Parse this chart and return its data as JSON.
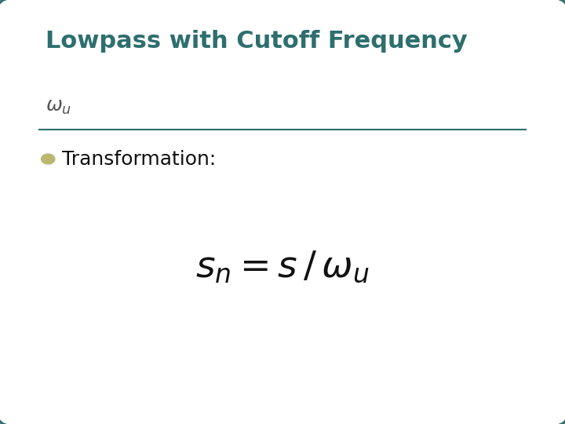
{
  "title": "Lowpass with Cutoff Frequency",
  "title_color": "#2E6E6E",
  "title_fontsize": 22,
  "subtitle_math": "$\\omega_u$",
  "subtitle_color": "#555555",
  "subtitle_fontsize": 18,
  "bullet_color": "#B8B870",
  "bullet_text": "Transformation:",
  "bullet_fontsize": 18,
  "formula": "$s_n = s\\,/\\,\\omega_u$",
  "formula_fontsize": 34,
  "formula_color": "#111111",
  "background_color": "#FFFFFF",
  "border_color": "#2E6E6E",
  "border_linewidth": 2.5,
  "line_color": "#2E6E6E",
  "line_linewidth": 1.5,
  "fig_width": 7.2,
  "fig_height": 5.4,
  "dpi": 100
}
